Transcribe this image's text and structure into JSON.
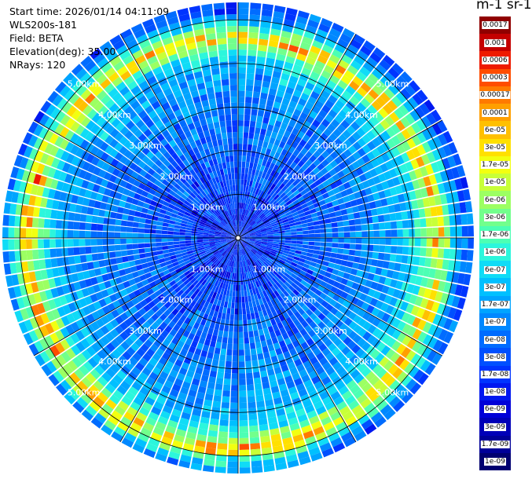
{
  "header": {
    "start_time": "Start time: 2026/01/14 04:11:09",
    "instrument": "WLS200s-181",
    "field": "Field: BETA",
    "elevation": "Elevation(deg): 35.00",
    "nrays": "NRays: 120"
  },
  "colorbar": {
    "title": "m-1 sr-1",
    "labels": [
      "0.0017",
      "0.001",
      "0.0006",
      "0.0003",
      "0.00017",
      "0.0001",
      "6e-05",
      "3e-05",
      "1.7e-05",
      "1e-05",
      "6e-06",
      "3e-06",
      "1.7e-06",
      "1e-06",
      "6e-07",
      "3e-07",
      "1.7e-07",
      "1e-07",
      "6e-08",
      "3e-08",
      "1.7e-08",
      "1e-08",
      "6e-09",
      "3e-09",
      "1.7e-09",
      "1e-09"
    ],
    "colors": [
      "#900000",
      "#c40000",
      "#ee1a00",
      "#ff4d00",
      "#ff7a00",
      "#ff9f00",
      "#ffc000",
      "#ffe000",
      "#f2ff10",
      "#c8ff38",
      "#9cff62",
      "#72ff8c",
      "#4cffb4",
      "#2cf6dc",
      "#10dcf6",
      "#00c0ff",
      "#00a4ff",
      "#0088ff",
      "#006cff",
      "#0050ff",
      "#0034ff",
      "#0018f0",
      "#0000d8",
      "#0000b8",
      "#000098",
      "#000070"
    ]
  },
  "chart_data": {
    "type": "ppi-scan",
    "field": "BETA",
    "units": "m-1 sr-1",
    "elevation_deg": 35.0,
    "n_rays": 120,
    "range_rings_km": [
      1,
      2,
      3,
      4,
      5
    ],
    "ring_labels": [
      "1.00km",
      "2.00km",
      "3.00km",
      "4.00km",
      "5.00km"
    ],
    "color_scale": "log",
    "value_range": [
      1e-09,
      0.0017
    ],
    "radial_profile_approx": [
      {
        "range_km": 0.5,
        "beta": 2e-08
      },
      {
        "range_km": 1.5,
        "beta": 4e-08
      },
      {
        "range_km": 2.5,
        "beta": 8e-08
      },
      {
        "range_km": 3.5,
        "beta": 1.5e-07
      },
      {
        "range_km": 4.2,
        "beta": 5e-07
      },
      {
        "range_km": 4.7,
        "beta": 3e-05
      },
      {
        "range_km": 5.3,
        "beta": 5e-08
      }
    ]
  }
}
